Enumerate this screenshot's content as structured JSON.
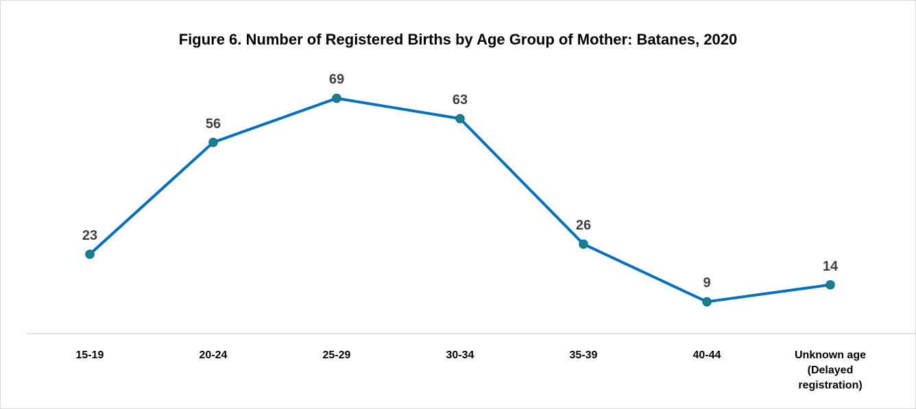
{
  "chart_data": {
    "type": "line",
    "title": "Figure 6. Number of Registered Births by Age Group of Mother: Batanes, 2020",
    "categories": [
      "15-19",
      "20-24",
      "25-29",
      "30-34",
      "35-39",
      "40-44",
      "Unknown age (Delayed registration)"
    ],
    "values": [
      23,
      56,
      69,
      63,
      26,
      9,
      14
    ],
    "color": "#0070c0",
    "marker_color": "#1f7f7a"
  }
}
